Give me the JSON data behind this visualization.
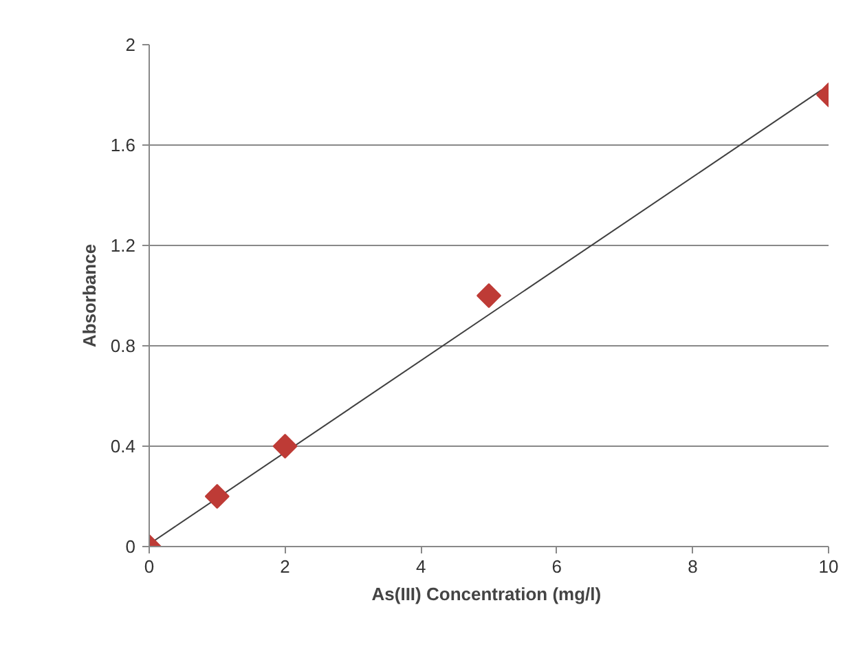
{
  "chart_data": {
    "type": "scatter",
    "xlabel": "As(III) Concentration  (mg/l)",
    "ylabel": "Absorbance",
    "x": [
      0,
      1,
      2,
      5,
      10
    ],
    "series": [
      {
        "color": "#be3b36",
        "values": [
          0,
          0.2,
          0.4,
          1.0,
          1.8
        ],
        "marker": "diamond"
      },
      {
        "type": "line",
        "x": [
          0,
          9.9
        ],
        "values": [
          0.01,
          1.82
        ],
        "color": "#404040",
        "line_style": "solid"
      }
    ],
    "xlim": [
      0,
      10
    ],
    "ylim": [
      0,
      2
    ],
    "xticks": [
      0,
      2,
      4,
      6,
      8,
      10
    ],
    "yticks": [
      0,
      0.4,
      0.8,
      1.2,
      1.6,
      2
    ],
    "grid": "y"
  }
}
